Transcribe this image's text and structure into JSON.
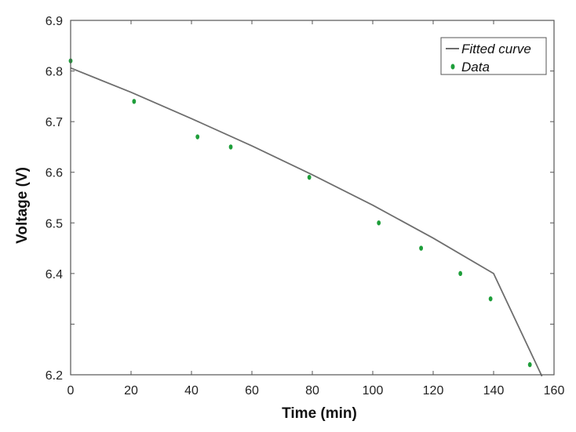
{
  "chart_data": {
    "type": "scatter",
    "xlabel": "Time (min)",
    "ylabel": "Voltage (V)",
    "xlim": [
      0,
      160
    ],
    "ylim": [
      6.2,
      6.9
    ],
    "xticks": [
      0,
      20,
      40,
      60,
      80,
      100,
      120,
      140,
      160
    ],
    "xtick_labels": [
      "0",
      "20",
      "40",
      "60",
      "80",
      "100",
      "120",
      "140",
      "160"
    ],
    "yticks": [
      6.2,
      6.3,
      6.4,
      6.5,
      6.6,
      6.7,
      6.8,
      6.9
    ],
    "ytick_labels": [
      "6.2",
      "",
      "6.4",
      "6.5",
      "6.6",
      "6.7",
      "6.8",
      "6.9"
    ],
    "grid": false,
    "legend_position": "top-right",
    "series": [
      {
        "name": "Fitted curve",
        "kind": "line",
        "color": "#6e6e6e",
        "x": [
          0,
          20,
          40,
          60,
          80,
          100,
          120,
          140,
          156
        ],
        "y": [
          6.806,
          6.758,
          6.706,
          6.652,
          6.595,
          6.535,
          6.47,
          6.4,
          6.197
        ]
      },
      {
        "name": "Data",
        "kind": "scatter",
        "color": "#1e9e3a",
        "x": [
          0,
          21,
          42,
          53,
          79,
          102,
          116,
          129,
          139,
          152
        ],
        "y": [
          6.82,
          6.74,
          6.67,
          6.65,
          6.59,
          6.5,
          6.45,
          6.4,
          6.35,
          6.22
        ]
      }
    ]
  }
}
